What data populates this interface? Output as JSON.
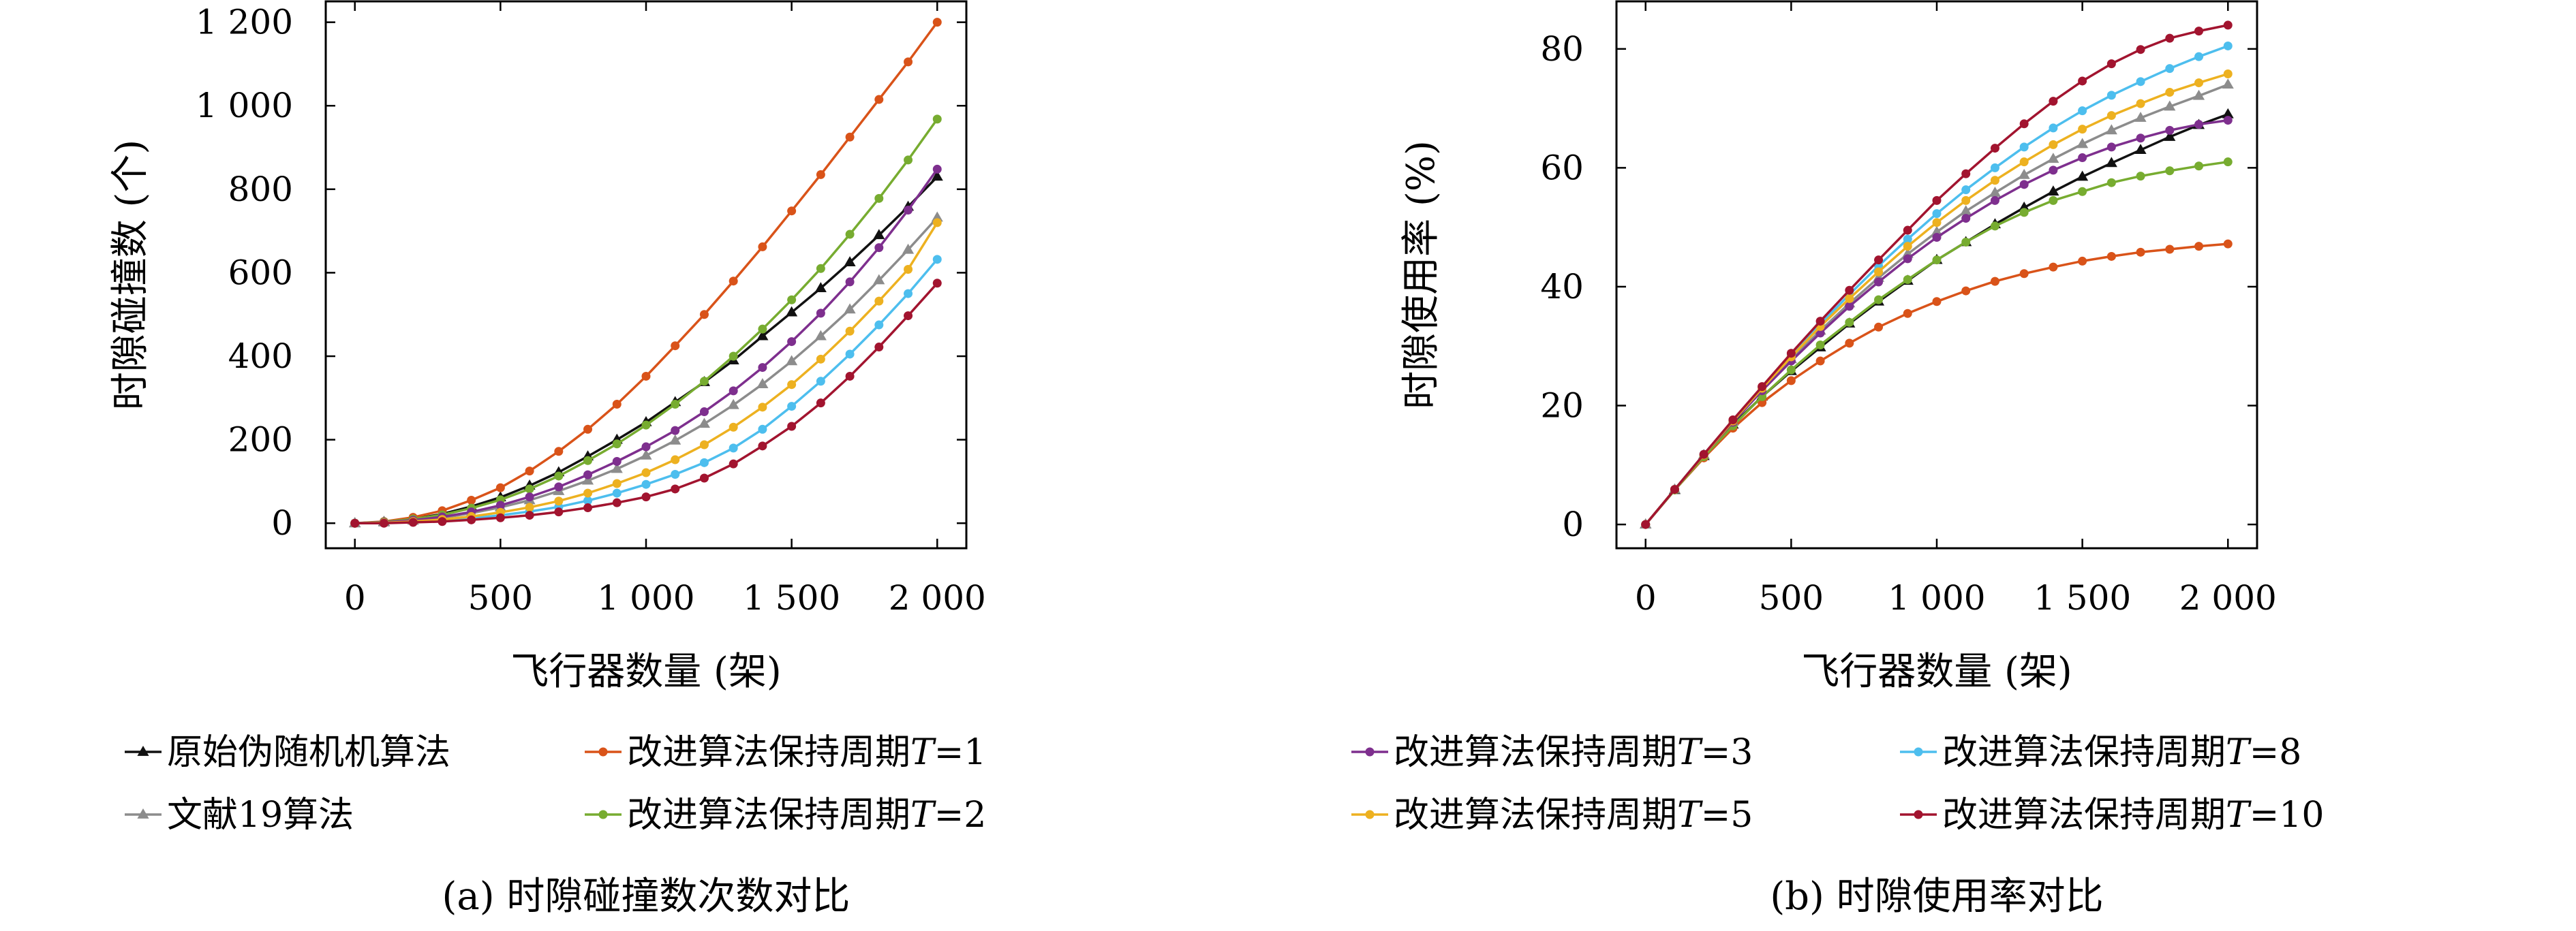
{
  "colors": {
    "orig": "#111111",
    "lit19": "#8c8c8c",
    "t1": "#d95319",
    "t2": "#77ac30",
    "t3": "#7e2f8e",
    "t5": "#edb120",
    "t8": "#4dbeee",
    "t10": "#a2142f"
  },
  "chart_data": [
    {
      "type": "line",
      "caption": "(a) 时隙碰撞数次数对比",
      "xlabel": "飞行器数量 (架)",
      "ylabel": "时隙碰撞数 (个)",
      "xlim": [
        -100,
        2100
      ],
      "ylim": [
        -60,
        1250
      ],
      "xticks": [
        0,
        500,
        1000,
        1500,
        2000
      ],
      "xtick_labels": [
        "0",
        "500",
        "1 000",
        "1 500",
        "2 000"
      ],
      "yticks": [
        0,
        200,
        400,
        600,
        800,
        1000,
        1200
      ],
      "ytick_labels": [
        "0",
        "200",
        "400",
        "600",
        "800",
        "1 000",
        "1 200"
      ],
      "x": [
        0,
        100,
        200,
        300,
        400,
        500,
        600,
        700,
        800,
        900,
        1000,
        1100,
        1200,
        1300,
        1400,
        1500,
        1600,
        1700,
        1800,
        1900,
        2000
      ],
      "series": [
        {
          "name": "原始伪随机机算法",
          "color_key": "orig",
          "marker": "triangle",
          "values": [
            0,
            3,
            10,
            22,
            40,
            62,
            90,
            122,
            160,
            200,
            242,
            290,
            338,
            390,
            448,
            505,
            563,
            625,
            690,
            758,
            830
          ]
        },
        {
          "name": "改进算法保持周期T=1",
          "color_key": "t1",
          "marker": "dot",
          "values": [
            0,
            4,
            14,
            30,
            55,
            85,
            125,
            172,
            225,
            285,
            352,
            425,
            500,
            580,
            662,
            748,
            835,
            925,
            1015,
            1105,
            1200
          ]
        },
        {
          "name": "文献19算法",
          "color_key": "lit19",
          "marker": "triangle",
          "values": [
            0,
            2,
            6,
            13,
            24,
            38,
            55,
            77,
            102,
            130,
            162,
            198,
            238,
            283,
            333,
            388,
            448,
            512,
            582,
            655,
            732
          ]
        },
        {
          "name": "改进算法保持周期T=2",
          "color_key": "t2",
          "marker": "dot",
          "values": [
            0,
            3,
            10,
            20,
            36,
            56,
            82,
            113,
            150,
            190,
            235,
            285,
            340,
            400,
            465,
            535,
            610,
            692,
            778,
            870,
            968
          ]
        },
        {
          "name": "改进算法保持周期T=3",
          "color_key": "t3",
          "marker": "dot",
          "values": [
            0,
            2,
            7,
            15,
            27,
            43,
            63,
            87,
            116,
            148,
            183,
            222,
            267,
            317,
            373,
            435,
            503,
            578,
            660,
            750,
            848
          ]
        },
        {
          "name": "改进算法保持周期T=8",
          "color_key": "t8",
          "marker": "dot",
          "values": [
            0,
            1,
            3,
            7,
            12,
            19,
            28,
            39,
            54,
            72,
            93,
            117,
            145,
            180,
            225,
            280,
            340,
            405,
            475,
            550,
            632
          ]
        },
        {
          "name": "改进算法保持周期T=5",
          "color_key": "t5",
          "marker": "dot",
          "values": [
            0,
            1,
            4,
            9,
            16,
            26,
            38,
            53,
            72,
            95,
            121,
            152,
            188,
            230,
            278,
            332,
            393,
            460,
            532,
            608,
            720
          ]
        },
        {
          "name": "改进算法保持周期T=10",
          "color_key": "t10",
          "marker": "dot",
          "values": [
            0,
            0,
            2,
            4,
            8,
            13,
            19,
            27,
            37,
            49,
            63,
            82,
            108,
            142,
            185,
            232,
            288,
            352,
            422,
            497,
            575
          ]
        }
      ],
      "legend": {
        "placement": "below",
        "items": [
          {
            "label": "原始伪随机机算法",
            "color_key": "orig",
            "marker": "triangle"
          },
          {
            "label": "改进算法保持周期T=1",
            "color_key": "t1",
            "marker": "dot"
          },
          {
            "label": "文献19算法",
            "color_key": "lit19",
            "marker": "triangle"
          },
          {
            "label": "改进算法保持周期T=2",
            "color_key": "t2",
            "marker": "dot"
          }
        ]
      }
    },
    {
      "type": "line",
      "caption": "(b) 时隙使用率对比",
      "xlabel": "飞行器数量 (架)",
      "ylabel": "时隙使用率 (%)",
      "xlim": [
        -100,
        2100
      ],
      "ylim": [
        -4,
        88
      ],
      "xticks": [
        0,
        500,
        1000,
        1500,
        2000
      ],
      "xtick_labels": [
        "0",
        "500",
        "1 000",
        "1 500",
        "2 000"
      ],
      "yticks": [
        0,
        20,
        40,
        60,
        80
      ],
      "ytick_labels": [
        "0",
        "20",
        "40",
        "60",
        "80"
      ],
      "x": [
        0,
        100,
        200,
        300,
        400,
        500,
        600,
        700,
        800,
        900,
        1000,
        1100,
        1200,
        1300,
        1400,
        1500,
        1600,
        1700,
        1800,
        1900,
        2000
      ],
      "series": [
        {
          "name": "原始伪随机机算法",
          "color_key": "orig",
          "marker": "triangle",
          "values": [
            0,
            5.8,
            11.5,
            16.8,
            21.5,
            25.8,
            29.8,
            33.8,
            37.5,
            41.0,
            44.5,
            47.5,
            50.5,
            53.3,
            56.0,
            58.5,
            60.8,
            63.0,
            65.2,
            67.2,
            69.0
          ]
        },
        {
          "name": "改进算法保持周期T=1",
          "color_key": "t1",
          "marker": "dot",
          "values": [
            0,
            5.8,
            11.2,
            16.2,
            20.5,
            24.2,
            27.5,
            30.5,
            33.2,
            35.5,
            37.5,
            39.3,
            40.9,
            42.2,
            43.3,
            44.3,
            45.1,
            45.8,
            46.3,
            46.8,
            47.2
          ]
        },
        {
          "name": "文献19算法",
          "color_key": "lit19",
          "marker": "triangle",
          "values": [
            0,
            5.9,
            11.7,
            17.3,
            22.7,
            27.8,
            32.6,
            37.2,
            41.5,
            45.5,
            49.2,
            52.7,
            55.8,
            58.8,
            61.5,
            64.0,
            66.3,
            68.4,
            70.3,
            72.1,
            74.0
          ]
        },
        {
          "name": "改进算法保持周期T=2",
          "color_key": "t2",
          "marker": "dot",
          "values": [
            0,
            5.8,
            11.4,
            16.6,
            21.5,
            26.0,
            30.2,
            34.0,
            37.8,
            41.2,
            44.5,
            47.5,
            50.2,
            52.5,
            54.5,
            56.0,
            57.5,
            58.6,
            59.5,
            60.3,
            61.0
          ]
        },
        {
          "name": "改进算法保持周期T=3",
          "color_key": "t3",
          "marker": "dot",
          "values": [
            0,
            5.9,
            11.7,
            17.2,
            22.5,
            27.5,
            32.2,
            36.7,
            40.8,
            44.7,
            48.3,
            51.5,
            54.5,
            57.2,
            59.6,
            61.7,
            63.5,
            65.0,
            66.3,
            67.3,
            68.0
          ]
        },
        {
          "name": "改进算法保持周期T=8",
          "color_key": "t8",
          "marker": "dot",
          "values": [
            0,
            5.9,
            11.8,
            17.5,
            23.1,
            28.5,
            33.7,
            38.7,
            43.5,
            48.0,
            52.3,
            56.3,
            60.0,
            63.5,
            66.7,
            69.6,
            72.2,
            74.5,
            76.7,
            78.7,
            80.5
          ]
        },
        {
          "name": "改进算法保持周期T=5",
          "color_key": "t5",
          "marker": "dot",
          "values": [
            0,
            5.9,
            11.7,
            17.4,
            22.9,
            28.2,
            33.3,
            38.0,
            42.5,
            46.8,
            50.8,
            54.5,
            57.9,
            61.0,
            63.9,
            66.5,
            68.8,
            70.8,
            72.7,
            74.3,
            75.8
          ]
        },
        {
          "name": "改进算法保持周期T=10",
          "color_key": "t10",
          "marker": "dot",
          "values": [
            0,
            5.9,
            11.8,
            17.6,
            23.2,
            28.8,
            34.2,
            39.4,
            44.5,
            49.5,
            54.5,
            59.0,
            63.3,
            67.4,
            71.2,
            74.6,
            77.5,
            79.9,
            81.8,
            83.0,
            84.0
          ]
        }
      ],
      "legend": {
        "placement": "below",
        "items": [
          {
            "label": "改进算法保持周期T=3",
            "color_key": "t3",
            "marker": "dot"
          },
          {
            "label": "改进算法保持周期T=8",
            "color_key": "t8",
            "marker": "dot"
          },
          {
            "label": "改进算法保持周期T=5",
            "color_key": "t5",
            "marker": "dot"
          },
          {
            "label": "改进算法保持周期T=10",
            "color_key": "t10",
            "marker": "dot"
          }
        ]
      }
    }
  ]
}
